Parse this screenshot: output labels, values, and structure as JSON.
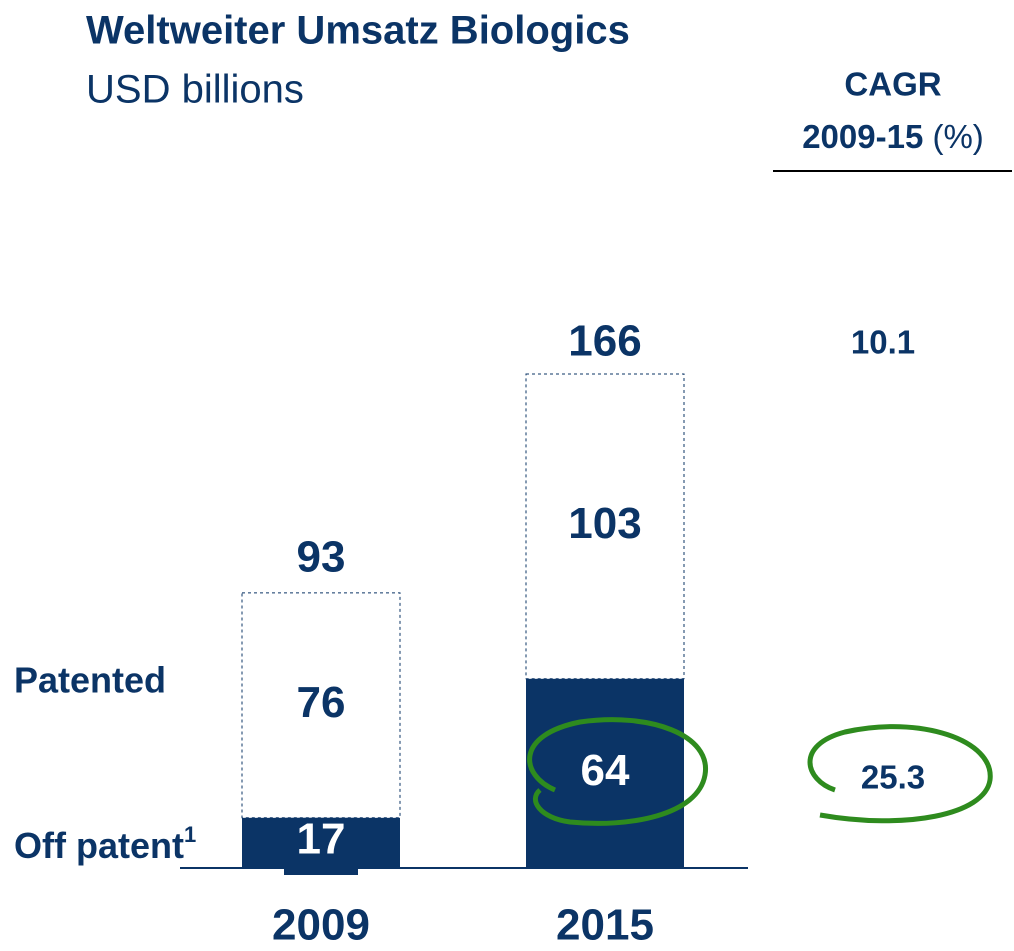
{
  "chart_data": {
    "type": "stacked_bar",
    "title": "Weltweiter Umsatz Biologics",
    "subtitle": "USD billions",
    "categories": [
      "2009",
      "2015"
    ],
    "series": [
      {
        "name": "Off patent",
        "footnote": "1",
        "color": "#0b3466",
        "values": [
          17,
          64
        ]
      },
      {
        "name": "Patented",
        "color": "#ffffff",
        "values": [
          76,
          103
        ]
      }
    ],
    "totals": [
      93,
      166
    ],
    "cagr_header": {
      "title": "CAGR",
      "period": "2009-15",
      "unit": "(%)"
    },
    "cagr": {
      "total": 10.1,
      "off_patent": 25.3
    }
  }
}
